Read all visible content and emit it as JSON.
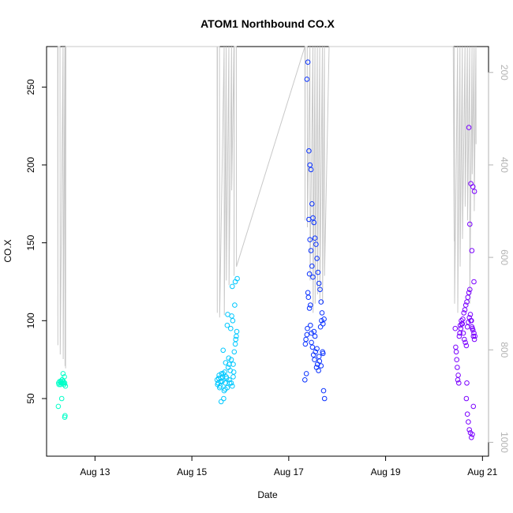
{
  "chart_data": {
    "type": "scatter",
    "title": "ATOM1 Northbound CO.X",
    "xlabel": "Date",
    "ylabel": "CO.X",
    "xlim": [
      "2023-08-12T00:00",
      "2023-08-21T03:00"
    ],
    "ylim": [
      13,
      276
    ],
    "x_ticks": [
      "Aug 13",
      "Aug 15",
      "Aug 17",
      "Aug 19",
      "Aug 21"
    ],
    "x_tick_dates": [
      "2023-08-13",
      "2023-08-15",
      "2023-08-17",
      "2023-08-19",
      "2023-08-21"
    ],
    "y_ticks": [
      50,
      100,
      150,
      200,
      250
    ],
    "y_ticks_labels": [
      "50",
      "100",
      "150",
      "200",
      "250"
    ],
    "right_axis": {
      "reversed": true,
      "lim": [
        1030,
        144
      ],
      "ticks": [
        200,
        400,
        600,
        800,
        1000
      ],
      "tick_labels": [
        "200",
        "400",
        "600",
        "800",
        "1000"
      ],
      "color": "#b3b3b3"
    },
    "grid": false,
    "legend": "none",
    "colors": {
      "Aug 12": "#00ffc8",
      "Aug 15": "#00c8ff",
      "Aug 17": "#0a32ff",
      "Aug 20": "#7a00ff",
      "secondary_line": "#c8c8c8"
    },
    "series": [
      {
        "color": "#00ffc8",
        "x": [
          "2023-08-12T06:00",
          "2023-08-12T06:30",
          "2023-08-12T07:00",
          "2023-08-12T07:20",
          "2023-08-12T07:40",
          "2023-08-12T08:00",
          "2023-08-12T08:20",
          "2023-08-12T08:40",
          "2023-08-12T09:00",
          "2023-08-12T09:20",
          "2023-08-12T06:10",
          "2023-08-12T07:10",
          "2023-08-12T07:50",
          "2023-08-12T08:30",
          "2023-08-12T05:50",
          "2023-08-12T07:30",
          "2023-08-12T08:10",
          "2023-08-12T08:50",
          "2023-08-12T09:10",
          "2023-08-12T09:00"
        ],
        "y": [
          60,
          61,
          59,
          60,
          62,
          60,
          61,
          59,
          60,
          58,
          59,
          61,
          62,
          60,
          45,
          50,
          66,
          64,
          39,
          38
        ]
      },
      {
        "color": "#00c8ff",
        "x": [
          "2023-08-15T12:30",
          "2023-08-15T13:00",
          "2023-08-15T13:30",
          "2023-08-15T14:00",
          "2023-08-15T14:30",
          "2023-08-15T15:00",
          "2023-08-15T15:30",
          "2023-08-15T16:00",
          "2023-08-15T16:30",
          "2023-08-15T17:00",
          "2023-08-15T17:30",
          "2023-08-15T18:00",
          "2023-08-15T18:30",
          "2023-08-15T19:00",
          "2023-08-15T19:30",
          "2023-08-15T20:00",
          "2023-08-15T20:30",
          "2023-08-15T21:00",
          "2023-08-15T21:30",
          "2023-08-15T22:00",
          "2023-08-15T12:45",
          "2023-08-15T13:15",
          "2023-08-15T13:45",
          "2023-08-15T14:15",
          "2023-08-15T14:45",
          "2023-08-15T15:15",
          "2023-08-15T15:45",
          "2023-08-15T16:15",
          "2023-08-15T16:45",
          "2023-08-15T17:15",
          "2023-08-15T17:45",
          "2023-08-15T18:15",
          "2023-08-15T18:45",
          "2023-08-15T19:15",
          "2023-08-15T19:45",
          "2023-08-15T20:15",
          "2023-08-15T20:45",
          "2023-08-15T21:15",
          "2023-08-15T21:45",
          "2023-08-15T22:15",
          "2023-08-15T14:30",
          "2023-08-15T15:30",
          "2023-08-15T16:30",
          "2023-08-15T17:30",
          "2023-08-15T18:30",
          "2023-08-15T19:30",
          "2023-08-15T20:30",
          "2023-08-15T21:30",
          "2023-08-15T22:30",
          "2023-08-15T20:00"
        ],
        "y": [
          62,
          60,
          65,
          58,
          63,
          61,
          66,
          55,
          60,
          64,
          57,
          70,
          62,
          68,
          75,
          58,
          72,
          80,
          85,
          90,
          59,
          63,
          57,
          61,
          66,
          64,
          50,
          67,
          73,
          63,
          104,
          76,
          60,
          95,
          103,
          100,
          67,
          110,
          88,
          93,
          48,
          81,
          56,
          97,
          72,
          60,
          64,
          125,
          127,
          122
        ]
      },
      {
        "color": "#0a32ff",
        "x": [
          "2023-08-17T08:00",
          "2023-08-17T08:30",
          "2023-08-17T09:00",
          "2023-08-17T09:30",
          "2023-08-17T10:00",
          "2023-08-17T10:30",
          "2023-08-17T11:00",
          "2023-08-17T11:30",
          "2023-08-17T12:00",
          "2023-08-17T12:30",
          "2023-08-17T13:00",
          "2023-08-17T13:30",
          "2023-08-17T14:00",
          "2023-08-17T14:30",
          "2023-08-17T15:00",
          "2023-08-17T15:30",
          "2023-08-17T16:00",
          "2023-08-17T16:30",
          "2023-08-17T17:00",
          "2023-08-17T17:30",
          "2023-08-17T08:15",
          "2023-08-17T08:45",
          "2023-08-17T09:15",
          "2023-08-17T09:45",
          "2023-08-17T10:15",
          "2023-08-17T10:45",
          "2023-08-17T11:15",
          "2023-08-17T11:45",
          "2023-08-17T12:15",
          "2023-08-17T12:45",
          "2023-08-17T13:15",
          "2023-08-17T13:45",
          "2023-08-17T14:15",
          "2023-08-17T14:45",
          "2023-08-17T15:15",
          "2023-08-17T15:45",
          "2023-08-17T16:15",
          "2023-08-17T16:45",
          "2023-08-17T17:15",
          "2023-08-17T17:45",
          "2023-08-17T10:00",
          "2023-08-17T10:30",
          "2023-08-17T11:00",
          "2023-08-17T11:30",
          "2023-08-17T12:00",
          "2023-08-17T09:30",
          "2023-08-17T09:00",
          "2023-08-17T10:15",
          "2023-08-17T10:45",
          "2023-08-17T11:15",
          "2023-08-17T12:30",
          "2023-08-17T13:00",
          "2023-08-17T14:00",
          "2023-08-17T15:00",
          "2023-08-17T16:00",
          "2023-08-17T17:00"
        ],
        "y": [
          62,
          88,
          255,
          266,
          209,
          200,
          197,
          175,
          166,
          163,
          153,
          149,
          140,
          131,
          124,
          120,
          112,
          105,
          98,
          101,
          85,
          66,
          95,
          115,
          130,
          110,
          92,
          83,
          78,
          75,
          80,
          70,
          72,
          68,
          74,
          96,
          100,
          80,
          55,
          50,
          165,
          152,
          145,
          135,
          128,
          118,
          91,
          108,
          97,
          86,
          93,
          90,
          82,
          77,
          71,
          79
        ]
      },
      {
        "color": "#7a00ff",
        "x": [
          "2023-08-20T10:30",
          "2023-08-20T11:00",
          "2023-08-20T11:30",
          "2023-08-20T12:00",
          "2023-08-20T12:30",
          "2023-08-20T13:00",
          "2023-08-20T13:30",
          "2023-08-20T14:00",
          "2023-08-20T14:30",
          "2023-08-20T15:00",
          "2023-08-20T15:30",
          "2023-08-20T16:00",
          "2023-08-20T16:30",
          "2023-08-20T17:00",
          "2023-08-20T17:30",
          "2023-08-20T18:00",
          "2023-08-20T18:30",
          "2023-08-20T19:00",
          "2023-08-20T19:30",
          "2023-08-20T20:00",
          "2023-08-20T10:45",
          "2023-08-20T11:15",
          "2023-08-20T11:45",
          "2023-08-20T12:15",
          "2023-08-20T12:45",
          "2023-08-20T13:15",
          "2023-08-20T13:45",
          "2023-08-20T14:15",
          "2023-08-20T14:45",
          "2023-08-20T15:15",
          "2023-08-20T15:45",
          "2023-08-20T16:15",
          "2023-08-20T16:45",
          "2023-08-20T17:15",
          "2023-08-20T17:45",
          "2023-08-20T18:15",
          "2023-08-20T18:45",
          "2023-08-20T19:15",
          "2023-08-20T19:45",
          "2023-08-20T20:15",
          "2023-08-20T16:00",
          "2023-08-20T16:30",
          "2023-08-20T17:00",
          "2023-08-20T17:30",
          "2023-08-20T18:00",
          "2023-08-20T18:30",
          "2023-08-20T19:00",
          "2023-08-20T19:30",
          "2023-08-20T16:15",
          "2023-08-20T17:15",
          "2023-08-20T18:15",
          "2023-08-20T19:15",
          "2023-08-20T20:00",
          "2023-08-20T17:45",
          "2023-08-20T18:45",
          "2023-08-20T19:45"
        ],
        "y": [
          95,
          80,
          70,
          65,
          90,
          97,
          100,
          98,
          92,
          88,
          86,
          84,
          96,
          99,
          102,
          104,
          100,
          95,
          90,
          88,
          83,
          75,
          62,
          60,
          92,
          95,
          98,
          101,
          105,
          107,
          110,
          112,
          115,
          118,
          120,
          100,
          96,
          94,
          92,
          90,
          50,
          40,
          35,
          30,
          28,
          25,
          27,
          45,
          60,
          224,
          188,
          186,
          183,
          162,
          145,
          125
        ]
      }
    ],
    "secondary_line": {
      "axis": "right",
      "color": "#c8c8c8",
      "x": [
        "2023-08-12T05:30",
        "2023-08-12T05:35",
        "2023-08-12T05:40",
        "2023-08-12T06:40",
        "2023-08-12T06:45",
        "2023-08-12T08:10",
        "2023-08-12T08:15",
        "2023-08-12T09:05",
        "2023-08-12T09:10",
        "2023-08-12T09:20",
        "2023-08-12T09:25",
        "2023-08-12T09:35",
        "2023-08-12T09:40",
        "2023-08-12T21:00",
        "2023-08-13T00:00",
        "2023-08-15T12:30",
        "2023-08-15T12:35",
        "2023-08-15T12:40",
        "2023-08-15T13:40",
        "2023-08-15T13:45",
        "2023-08-15T16:00",
        "2023-08-15T16:05",
        "2023-08-15T17:00",
        "2023-08-15T17:05",
        "2023-08-15T18:20",
        "2023-08-15T18:25",
        "2023-08-15T19:40",
        "2023-08-15T19:45",
        "2023-08-15T20:50",
        "2023-08-15T20:55",
        "2023-08-15T21:00",
        "2023-08-15T22:00",
        "2023-08-15T22:05",
        "2023-08-17T08:00",
        "2023-08-17T08:05",
        "2023-08-17T08:10",
        "2023-08-17T09:10",
        "2023-08-17T09:15",
        "2023-08-17T10:30",
        "2023-08-17T10:35",
        "2023-08-17T12:00",
        "2023-08-17T12:05",
        "2023-08-17T13:00",
        "2023-08-17T13:05",
        "2023-08-17T14:10",
        "2023-08-17T14:15",
        "2023-08-17T15:20",
        "2023-08-17T15:25",
        "2023-08-17T16:40",
        "2023-08-17T16:45",
        "2023-08-17T17:40",
        "2023-08-17T17:45",
        "2023-08-17T20:00",
        "2023-08-17T21:00",
        "2023-08-20T09:30",
        "2023-08-20T10:00",
        "2023-08-20T10:05",
        "2023-08-20T10:10",
        "2023-08-20T11:40",
        "2023-08-20T11:45",
        "2023-08-20T12:50",
        "2023-08-20T12:55",
        "2023-08-20T14:00",
        "2023-08-20T14:05",
        "2023-08-20T15:20",
        "2023-08-20T15:25",
        "2023-08-20T16:30",
        "2023-08-20T16:35",
        "2023-08-20T17:40",
        "2023-08-20T17:45",
        "2023-08-20T18:50",
        "2023-08-20T18:55",
        "2023-08-20T19:50",
        "2023-08-20T19:55",
        "2023-08-20T20:45",
        "2023-08-20T20:50"
      ],
      "y": [
        144,
        790,
        144,
        144,
        810,
        144,
        820,
        144,
        835,
        144,
        840,
        144,
        144,
        144,
        144,
        144,
        720,
        144,
        144,
        730,
        144,
        725,
        144,
        650,
        144,
        660,
        144,
        455,
        144,
        640,
        144,
        144,
        620,
        144,
        520,
        144,
        144,
        535,
        144,
        650,
        144,
        720,
        144,
        700,
        144,
        680,
        144,
        690,
        144,
        700,
        144,
        640,
        144,
        144,
        144,
        565,
        144,
        700,
        144,
        720,
        144,
        620,
        144,
        560,
        144,
        490,
        144,
        520,
        144,
        700,
        144,
        420,
        144,
        500,
        144,
        355
      ]
    }
  }
}
